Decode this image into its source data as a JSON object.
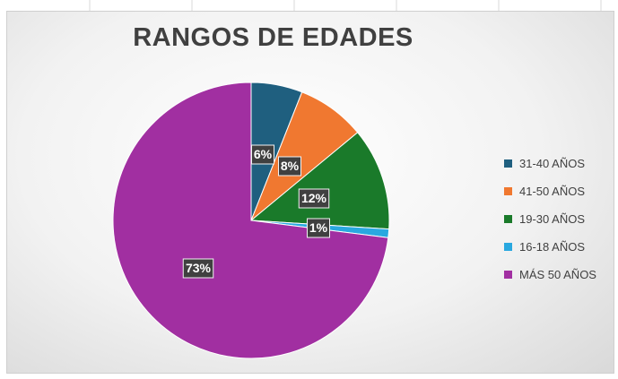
{
  "chart_data": {
    "type": "pie",
    "title": "RANGOS DE EDADES",
    "slices": [
      {
        "label": "31-40 AÑOS",
        "value": 6,
        "data_label": "6%",
        "color": "#1F5F7F"
      },
      {
        "label": "41-50 AÑOS",
        "value": 8,
        "data_label": "8%",
        "color": "#F07830"
      },
      {
        "label": "19-30 AÑOS",
        "value": 12,
        "data_label": "12%",
        "color": "#1A7A2A"
      },
      {
        "label": "16-18 AÑOS",
        "value": 1,
        "data_label": "1%",
        "color": "#29A8E0"
      },
      {
        "label": "MÁS 50 AÑOS",
        "value": 73,
        "data_label": "73%",
        "color": "#A12FA1"
      }
    ],
    "legend_position": "right",
    "start_angle": "12 o'clock, clockwise"
  }
}
